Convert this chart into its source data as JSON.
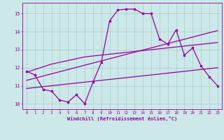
{
  "xlabel": "Windchill (Refroidissement éolien,°C)",
  "x_values": [
    0,
    1,
    2,
    3,
    4,
    5,
    6,
    7,
    8,
    9,
    10,
    11,
    12,
    13,
    14,
    15,
    16,
    17,
    18,
    19,
    20,
    21,
    22,
    23
  ],
  "main_line": [
    11.8,
    11.6,
    10.8,
    10.7,
    10.2,
    10.1,
    10.5,
    10.0,
    11.2,
    12.3,
    14.6,
    15.2,
    15.25,
    15.25,
    15.0,
    15.0,
    13.6,
    13.3,
    14.1,
    12.7,
    13.1,
    12.1,
    11.5,
    11.0
  ],
  "reg_line1": [
    11.75,
    11.9,
    12.05,
    12.2,
    12.3,
    12.4,
    12.5,
    12.6,
    12.65,
    12.7,
    12.75,
    12.8,
    12.85,
    12.9,
    12.95,
    13.0,
    13.05,
    13.1,
    13.15,
    13.2,
    13.25,
    13.3,
    13.35,
    13.4
  ],
  "reg_line2": [
    10.85,
    10.9,
    10.95,
    11.0,
    11.05,
    11.1,
    11.15,
    11.2,
    11.25,
    11.3,
    11.35,
    11.4,
    11.45,
    11.5,
    11.55,
    11.6,
    11.65,
    11.7,
    11.75,
    11.8,
    11.85,
    11.9,
    11.95,
    12.0
  ],
  "reg_line3": [
    11.3,
    11.42,
    11.54,
    11.66,
    11.78,
    11.9,
    12.02,
    12.14,
    12.26,
    12.38,
    12.5,
    12.62,
    12.74,
    12.86,
    12.98,
    13.1,
    13.22,
    13.34,
    13.46,
    13.58,
    13.7,
    13.82,
    13.94,
    14.06
  ],
  "line_color": "#990099",
  "bg_color": "#cce8e8",
  "grid_color": "#aacccc",
  "ylim": [
    9.7,
    15.6
  ],
  "xlim": [
    -0.5,
    23.5
  ]
}
